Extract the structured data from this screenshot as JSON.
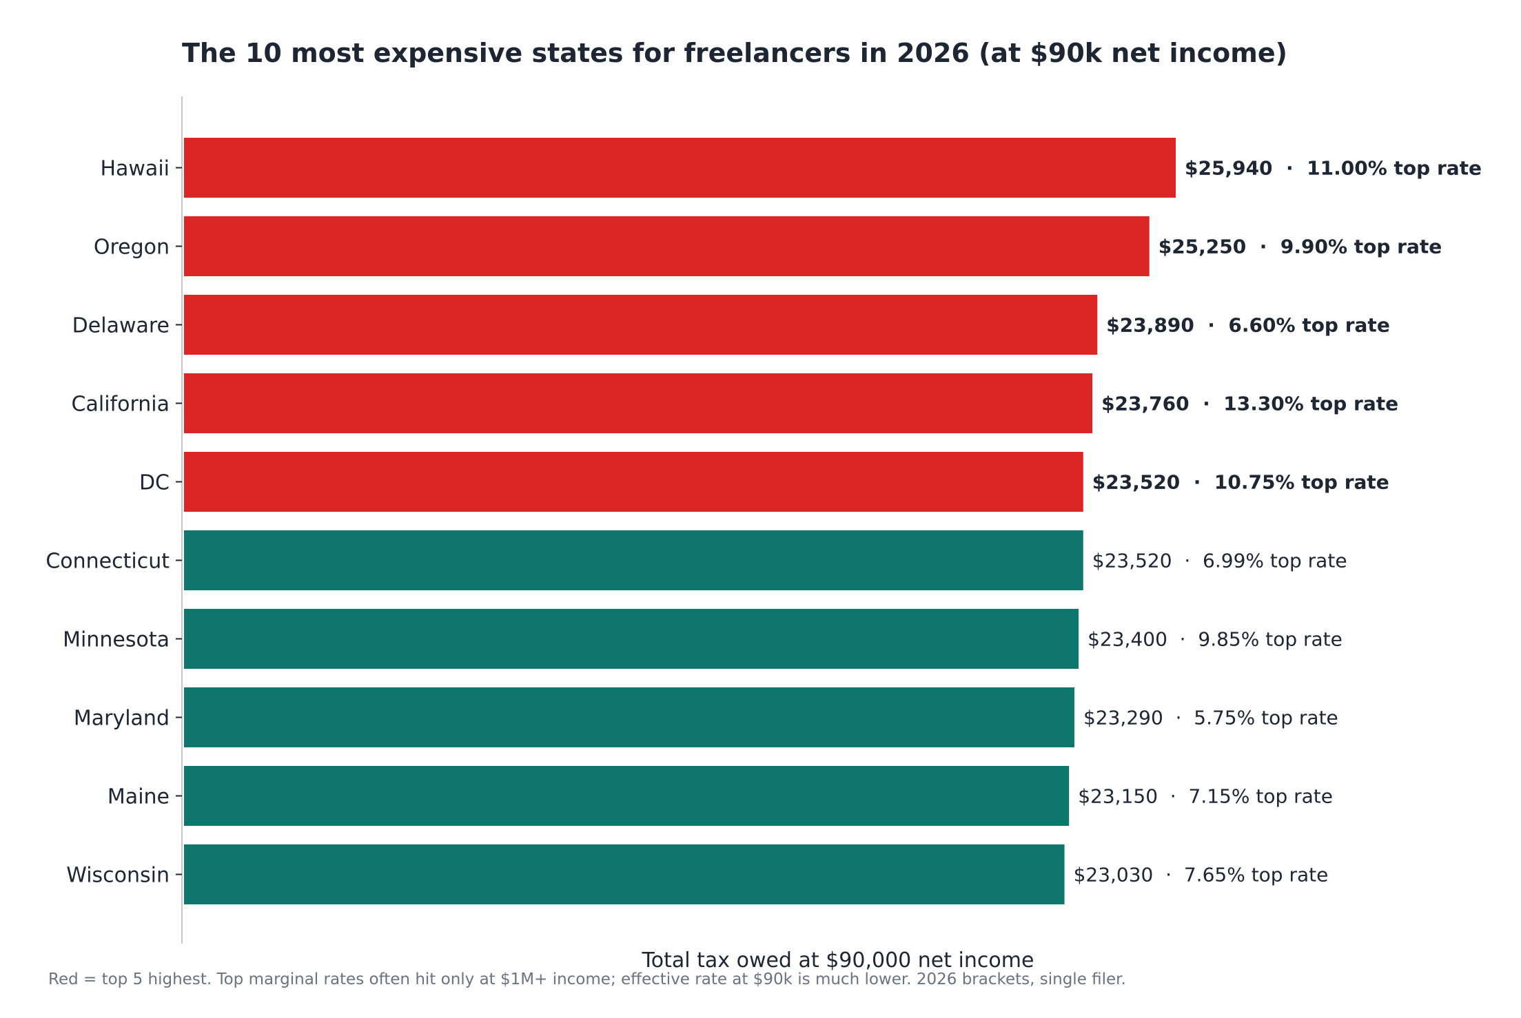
{
  "chart_data": {
    "type": "bar",
    "orientation": "horizontal",
    "title": "The 10 most expensive states for freelancers in 2026 (at $90k net income)",
    "xlabel": "Total tax owed at $90,000 net income",
    "ylabel": "",
    "categories": [
      "Hawaii",
      "Oregon",
      "Delaware",
      "California",
      "DC",
      "Connecticut",
      "Minnesota",
      "Maryland",
      "Maine",
      "Wisconsin"
    ],
    "values": [
      25940,
      25250,
      23890,
      23760,
      23520,
      23520,
      23400,
      23290,
      23150,
      23030
    ],
    "top_rates": [
      "11.00%",
      "9.90%",
      "6.60%",
      "13.30%",
      "10.75%",
      "6.99%",
      "9.85%",
      "5.75%",
      "7.15%",
      "7.65%"
    ],
    "value_labels": [
      "$25,940  ·  11.00% top rate",
      "$25,250  ·  9.90% top rate",
      "$23,890  ·  6.60% top rate",
      "$23,760  ·  13.30% top rate",
      "$23,520  ·  10.75% top rate",
      "$23,520  ·  6.99% top rate",
      "$23,400  ·  9.85% top rate",
      "$23,290  ·  5.75% top rate",
      "$23,150  ·  7.15% top rate",
      "$23,030  ·  7.65% top rate"
    ],
    "highlight_top_n": 5,
    "colors": {
      "highlight": "#dc2626",
      "base": "#0f766e",
      "text": "#1e2533",
      "axis": "#c8c8c8",
      "footnote": "#6b7280"
    },
    "xlim": [
      0,
      25940
    ],
    "grid": false,
    "legend": "none",
    "x_ticks_shown": false
  },
  "footnote": "Red = top 5 highest. Top marginal rates often hit only at $1M+ income; effective rate at $90k is much lower. 2026 brackets, single filer."
}
